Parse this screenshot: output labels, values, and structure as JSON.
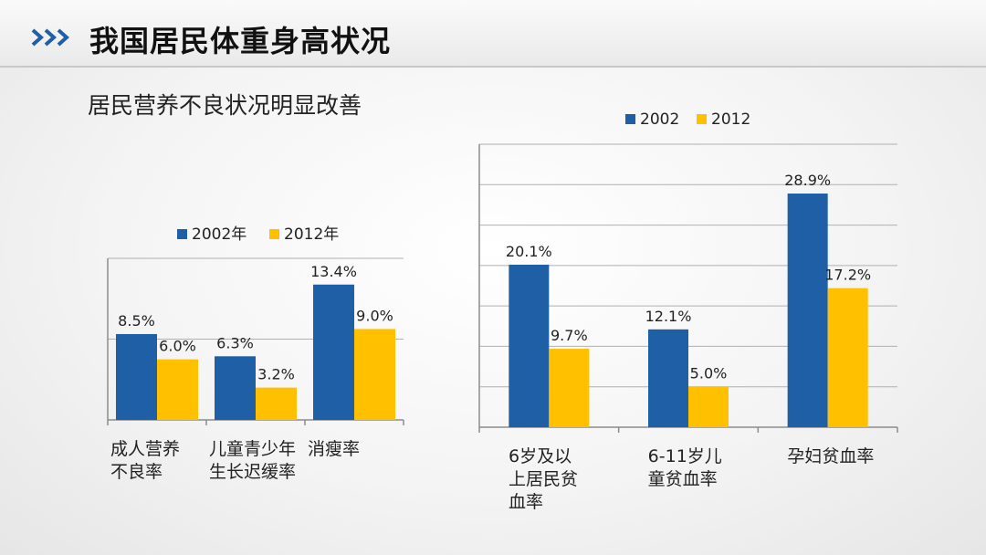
{
  "header": {
    "title": "我国居民体重身高状况",
    "subtitle": "居民营养不良状况明显改善"
  },
  "colors": {
    "series_a": "#1f5fa6",
    "series_b": "#ffc000",
    "axis": "#8c8c8c",
    "grid": "#b0b0b0",
    "chevron": "#1f5fa6"
  },
  "chart_data": [
    {
      "type": "bar",
      "categories": [
        "成人营养\n不良率",
        "儿童青少年\n生长迟缓率",
        "消瘦率"
      ],
      "series": [
        {
          "name": "2002年",
          "values": [
            8.5,
            6.3,
            13.4
          ],
          "labels": [
            "8.5%",
            "6.3%",
            "13.4%"
          ]
        },
        {
          "name": "2012年",
          "values": [
            6.0,
            3.2,
            9.0
          ],
          "labels": [
            "6.0%",
            "3.2%",
            "9.0%"
          ]
        }
      ],
      "ylim": [
        0,
        16
      ],
      "grid": true,
      "legend": "top"
    },
    {
      "type": "bar",
      "categories": [
        "6岁及以\n上居民贫\n血率",
        "6-11岁儿\n童贫血率",
        "孕妇贫血率"
      ],
      "series": [
        {
          "name": "2002",
          "values": [
            20.1,
            12.1,
            28.9
          ],
          "labels": [
            "20.1%",
            "12.1%",
            "28.9%"
          ]
        },
        {
          "name": "2012",
          "values": [
            9.7,
            5.0,
            17.2
          ],
          "labels": [
            "9.7%",
            "5.0%",
            "17.2%"
          ]
        }
      ],
      "ylim": [
        0,
        35
      ],
      "grid": true,
      "legend": "top"
    }
  ]
}
